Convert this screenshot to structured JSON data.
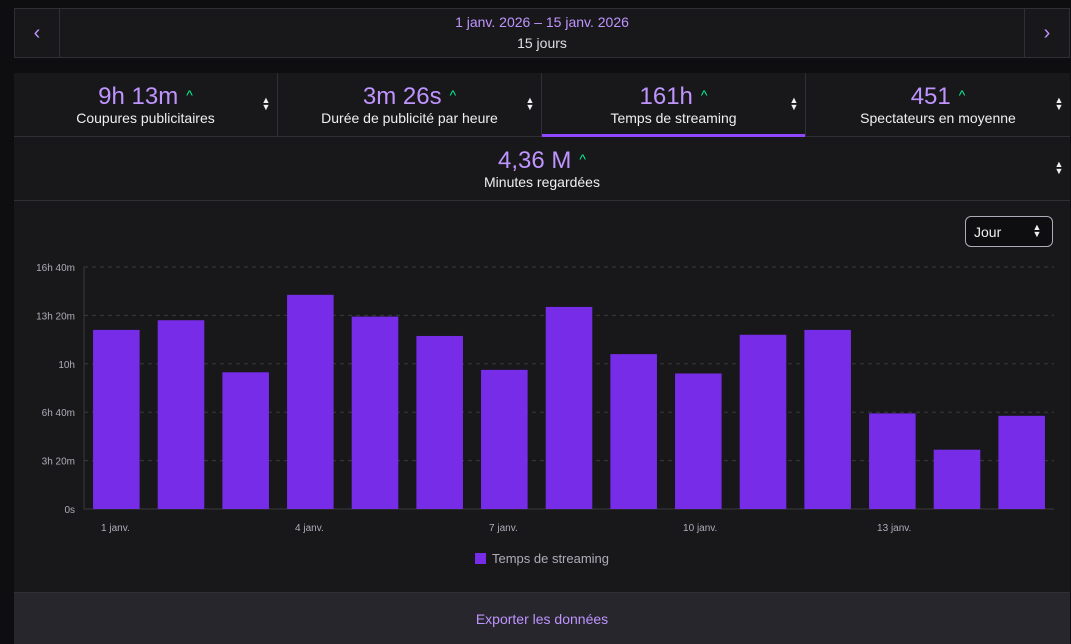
{
  "date_nav": {
    "range": "1 janv. 2026 – 15 janv. 2026",
    "days": "15 jours",
    "prev_icon": "chevron-left-icon",
    "next_icon": "chevron-right-icon",
    "prev_glyph": "‹",
    "next_glyph": "›"
  },
  "stats": [
    {
      "value": "9h 13m",
      "label": "Coupures publicitaires"
    },
    {
      "value": "3m 26s",
      "label": "Durée de publicité par heure"
    },
    {
      "value": "161h",
      "label": "Temps de streaming",
      "active": true
    },
    {
      "value": "451",
      "label": "Spectateurs en moyenne"
    }
  ],
  "stat_wide": {
    "value": "4,36 M",
    "label": "Minutes regardées"
  },
  "trend_glyph": "^",
  "sort_glyph_up": "▲",
  "sort_glyph_down": "▼",
  "interval_select": {
    "value": "Jour"
  },
  "colors": {
    "accent": "#bf94ff",
    "bar": "#772ce8",
    "trend_up": "#00f593",
    "active_underline": "#9147ff"
  },
  "chart_data": {
    "type": "bar",
    "unit": "minutes",
    "categories": [
      "1 janv.",
      "2 janv.",
      "3 janv.",
      "4 janv.",
      "5 janv.",
      "6 janv.",
      "7 janv.",
      "8 janv.",
      "9 janv.",
      "10 janv.",
      "11 janv.",
      "12 janv.",
      "13 janv.",
      "14 janv.",
      "15 janv."
    ],
    "x_tick_labels": [
      "1 janv.",
      "",
      "",
      "4 janv.",
      "",
      "",
      "7 janv.",
      "",
      "",
      "10 janv.",
      "",
      "",
      "13 janv.",
      "",
      ""
    ],
    "series": [
      {
        "name": "Temps de streaming",
        "values": [
          740,
          780,
          565,
          885,
          795,
          715,
          575,
          835,
          640,
          560,
          720,
          740,
          395,
          245,
          385
        ]
      }
    ],
    "y_ticks": [
      0,
      200,
      400,
      600,
      800,
      1000
    ],
    "y_tick_labels": [
      "0s",
      "3h 20m",
      "6h 40m",
      "10h",
      "13h 20m",
      "16h 40m"
    ],
    "ylim": [
      0,
      1000
    ],
    "grid": true,
    "legend_position": "bottom"
  },
  "export_label": "Exporter les données"
}
